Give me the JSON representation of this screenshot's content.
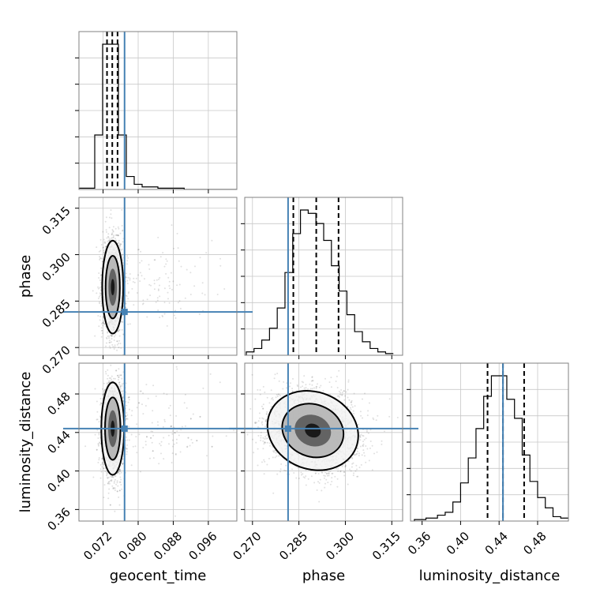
{
  "chart_data": {
    "type": "corner",
    "parameters": [
      {
        "key": "geocent_time",
        "label": "geocent_time",
        "range": [
          0.0665,
          0.1025
        ],
        "ticks": [
          0.072,
          0.08,
          0.088,
          0.096
        ],
        "tick_labels": [
          "0.072",
          "0.080",
          "0.088",
          "0.096"
        ]
      },
      {
        "key": "phase",
        "label": "phase",
        "range": [
          0.2675,
          0.3185
        ],
        "ticks": [
          0.27,
          0.285,
          0.3,
          0.315
        ],
        "tick_labels": [
          "0.270",
          "0.285",
          "0.300",
          "0.315"
        ]
      },
      {
        "key": "luminosity_distance",
        "label": "luminosity_distance",
        "range": [
          0.348,
          0.512
        ],
        "ticks": [
          0.36,
          0.4,
          0.44,
          0.48
        ],
        "tick_labels": [
          "0.36",
          "0.40",
          "0.44",
          "0.48"
        ]
      }
    ],
    "truths": {
      "geocent_time": 0.0769,
      "phase": 0.2815,
      "luminosity_distance": 0.444
    },
    "quantiles": {
      "geocent_time": [
        0.0729,
        0.0741,
        0.0753
      ],
      "phase": [
        0.2832,
        0.2906,
        0.2978
      ],
      "luminosity_distance": [
        0.428,
        0.444,
        0.466
      ]
    },
    "histograms": {
      "geocent_time": {
        "edges": [
          0.0665,
          0.0701,
          0.0719,
          0.0737,
          0.0755,
          0.0773,
          0.0791,
          0.0809,
          0.0845,
          0.0905,
          0.1025
        ],
        "counts": [
          0.5,
          21,
          56,
          56,
          21,
          5,
          2,
          1,
          0.5,
          0
        ]
      },
      "phase": {
        "edges": [
          0.268,
          0.2705,
          0.273,
          0.2755,
          0.278,
          0.2805,
          0.283,
          0.2855,
          0.288,
          0.2905,
          0.293,
          0.2955,
          0.298,
          0.3005,
          0.303,
          0.3055,
          0.308,
          0.3105,
          0.313,
          0.3155
        ],
        "counts": [
          2,
          4,
          9,
          16,
          28,
          49,
          72,
          86,
          84,
          78,
          68,
          53,
          38,
          24,
          14,
          8,
          4,
          2,
          1
        ]
      },
      "luminosity_distance": {
        "edges": [
          0.352,
          0.364,
          0.376,
          0.384,
          0.392,
          0.4,
          0.408,
          0.416,
          0.424,
          0.432,
          0.44,
          0.448,
          0.456,
          0.464,
          0.472,
          0.48,
          0.488,
          0.496,
          0.504,
          0.512
        ],
        "counts": [
          1,
          2,
          4,
          6,
          13,
          26,
          43,
          63,
          85,
          99,
          99,
          83,
          70,
          45,
          27,
          16,
          9,
          3,
          2
        ]
      }
    },
    "density_2d": {
      "phase_vs_geocent_time": {
        "center": [
          0.0742,
          0.2895
        ],
        "spread": [
          0.0012,
          0.0075
        ]
      },
      "luminosity_distance_vs_geocent_time": {
        "center": [
          0.0742,
          0.444
        ],
        "spread": [
          0.0013,
          0.024
        ]
      },
      "luminosity_distance_vs_phase": {
        "center": [
          0.2895,
          0.442
        ],
        "spread": [
          0.0075,
          0.02
        ]
      }
    },
    "grid": true,
    "colors": {
      "truth": "#4682b4",
      "hist": "#000000",
      "points": "#000000"
    }
  }
}
